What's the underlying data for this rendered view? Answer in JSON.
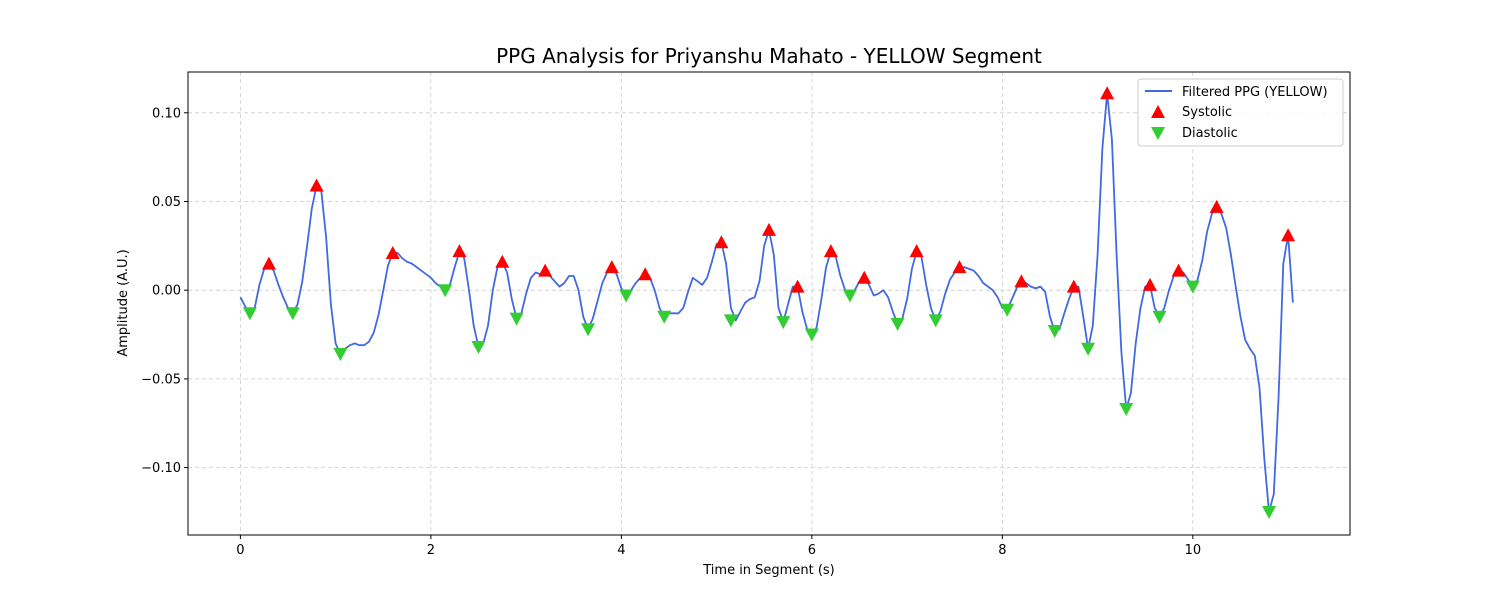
{
  "chart_data": {
    "type": "line",
    "title": "PPG Analysis for Priyanshu Mahato - YELLOW Segment",
    "xlabel": "Time in Segment (s)",
    "ylabel": "Amplitude (A.U.)",
    "xlim": [
      -0.55,
      11.65
    ],
    "ylim": [
      -0.138,
      0.123
    ],
    "xticks": [
      0,
      2,
      4,
      6,
      8,
      10
    ],
    "yticks": [
      -0.1,
      -0.05,
      0.0,
      0.05,
      0.1
    ],
    "ytick_labels": [
      "−0.10",
      "−0.05",
      "0.00",
      "0.05",
      "0.10"
    ],
    "grid": true,
    "legend_position": "top-right",
    "colors": {
      "line": "#4169e1",
      "systolic": "#ff0000",
      "diastolic": "#32cd32"
    },
    "series": [
      {
        "name": "Filtered PPG (YELLOW)",
        "kind": "line",
        "points": [
          [
            0.0,
            -0.004
          ],
          [
            0.05,
            -0.009
          ],
          [
            0.1,
            -0.013
          ],
          [
            0.15,
            -0.01
          ],
          [
            0.2,
            0.003
          ],
          [
            0.25,
            0.012
          ],
          [
            0.3,
            0.015
          ],
          [
            0.35,
            0.011
          ],
          [
            0.4,
            0.003
          ],
          [
            0.45,
            -0.004
          ],
          [
            0.5,
            -0.01
          ],
          [
            0.55,
            -0.013
          ],
          [
            0.6,
            -0.008
          ],
          [
            0.65,
            0.005
          ],
          [
            0.7,
            0.025
          ],
          [
            0.75,
            0.046
          ],
          [
            0.8,
            0.059
          ],
          [
            0.85,
            0.056
          ],
          [
            0.9,
            0.03
          ],
          [
            0.95,
            -0.008
          ],
          [
            1.0,
            -0.03
          ],
          [
            1.05,
            -0.036
          ],
          [
            1.1,
            -0.033
          ],
          [
            1.15,
            -0.031
          ],
          [
            1.2,
            -0.03
          ],
          [
            1.25,
            -0.031
          ],
          [
            1.3,
            -0.031
          ],
          [
            1.35,
            -0.029
          ],
          [
            1.4,
            -0.024
          ],
          [
            1.45,
            -0.014
          ],
          [
            1.5,
            0.0
          ],
          [
            1.55,
            0.014
          ],
          [
            1.6,
            0.021
          ],
          [
            1.65,
            0.021
          ],
          [
            1.7,
            0.018
          ],
          [
            1.75,
            0.016
          ],
          [
            1.8,
            0.015
          ],
          [
            1.85,
            0.013
          ],
          [
            1.9,
            0.011
          ],
          [
            1.95,
            0.009
          ],
          [
            2.0,
            0.007
          ],
          [
            2.05,
            0.004
          ],
          [
            2.1,
            0.002
          ],
          [
            2.15,
            0.0
          ],
          [
            2.2,
            0.003
          ],
          [
            2.25,
            0.013
          ],
          [
            2.3,
            0.022
          ],
          [
            2.35,
            0.018
          ],
          [
            2.4,
            0.0
          ],
          [
            2.45,
            -0.02
          ],
          [
            2.5,
            -0.032
          ],
          [
            2.55,
            -0.03
          ],
          [
            2.6,
            -0.02
          ],
          [
            2.65,
            0.0
          ],
          [
            2.7,
            0.013
          ],
          [
            2.75,
            0.016
          ],
          [
            2.8,
            0.01
          ],
          [
            2.85,
            -0.005
          ],
          [
            2.9,
            -0.016
          ],
          [
            2.95,
            -0.013
          ],
          [
            3.0,
            -0.002
          ],
          [
            3.05,
            0.007
          ],
          [
            3.1,
            0.01
          ],
          [
            3.15,
            0.009
          ],
          [
            3.2,
            0.011
          ],
          [
            3.25,
            0.008
          ],
          [
            3.3,
            0.005
          ],
          [
            3.35,
            0.002
          ],
          [
            3.4,
            0.004
          ],
          [
            3.45,
            0.008
          ],
          [
            3.5,
            0.008
          ],
          [
            3.55,
            0.0
          ],
          [
            3.6,
            -0.015
          ],
          [
            3.65,
            -0.022
          ],
          [
            3.7,
            -0.016
          ],
          [
            3.75,
            -0.006
          ],
          [
            3.8,
            0.004
          ],
          [
            3.85,
            0.01
          ],
          [
            3.9,
            0.013
          ],
          [
            3.95,
            0.009
          ],
          [
            4.0,
            0.001
          ],
          [
            4.05,
            -0.003
          ],
          [
            4.1,
            0.0
          ],
          [
            4.15,
            0.004
          ],
          [
            4.2,
            0.007
          ],
          [
            4.25,
            0.009
          ],
          [
            4.3,
            0.007
          ],
          [
            4.35,
            0.0
          ],
          [
            4.4,
            -0.01
          ],
          [
            4.45,
            -0.015
          ],
          [
            4.5,
            -0.013
          ],
          [
            4.55,
            -0.013
          ],
          [
            4.6,
            -0.013
          ],
          [
            4.65,
            -0.01
          ],
          [
            4.7,
            -0.001
          ],
          [
            4.75,
            0.007
          ],
          [
            4.8,
            0.005
          ],
          [
            4.85,
            0.003
          ],
          [
            4.9,
            0.007
          ],
          [
            4.95,
            0.016
          ],
          [
            5.0,
            0.026
          ],
          [
            5.05,
            0.027
          ],
          [
            5.1,
            0.015
          ],
          [
            5.15,
            -0.01
          ],
          [
            5.2,
            -0.017
          ],
          [
            5.25,
            -0.012
          ],
          [
            5.3,
            -0.007
          ],
          [
            5.35,
            -0.005
          ],
          [
            5.4,
            -0.004
          ],
          [
            5.45,
            0.005
          ],
          [
            5.5,
            0.025
          ],
          [
            5.55,
            0.034
          ],
          [
            5.6,
            0.02
          ],
          [
            5.65,
            -0.01
          ],
          [
            5.7,
            -0.018
          ],
          [
            5.75,
            -0.008
          ],
          [
            5.8,
            0.002
          ],
          [
            5.85,
            0.002
          ],
          [
            5.9,
            -0.012
          ],
          [
            5.95,
            -0.022
          ],
          [
            6.0,
            -0.025
          ],
          [
            6.05,
            -0.021
          ],
          [
            6.1,
            -0.005
          ],
          [
            6.15,
            0.013
          ],
          [
            6.2,
            0.022
          ],
          [
            6.25,
            0.019
          ],
          [
            6.3,
            0.008
          ],
          [
            6.35,
            0.0
          ],
          [
            6.4,
            -0.003
          ],
          [
            6.45,
            0.0
          ],
          [
            6.5,
            0.005
          ],
          [
            6.55,
            0.007
          ],
          [
            6.6,
            0.003
          ],
          [
            6.65,
            -0.003
          ],
          [
            6.7,
            -0.002
          ],
          [
            6.75,
            0.0
          ],
          [
            6.8,
            -0.004
          ],
          [
            6.85,
            -0.012
          ],
          [
            6.9,
            -0.019
          ],
          [
            6.95,
            -0.016
          ],
          [
            7.0,
            -0.005
          ],
          [
            7.05,
            0.012
          ],
          [
            7.1,
            0.022
          ],
          [
            7.15,
            0.019
          ],
          [
            7.2,
            0.003
          ],
          [
            7.25,
            -0.01
          ],
          [
            7.3,
            -0.017
          ],
          [
            7.35,
            -0.012
          ],
          [
            7.4,
            -0.002
          ],
          [
            7.45,
            0.006
          ],
          [
            7.5,
            0.01
          ],
          [
            7.55,
            0.012
          ],
          [
            7.6,
            0.013
          ],
          [
            7.65,
            0.012
          ],
          [
            7.7,
            0.011
          ],
          [
            7.75,
            0.008
          ],
          [
            7.8,
            0.004
          ],
          [
            7.85,
            0.002
          ],
          [
            7.9,
            0.0
          ],
          [
            7.95,
            -0.004
          ],
          [
            8.0,
            -0.01
          ],
          [
            8.05,
            -0.011
          ],
          [
            8.1,
            -0.005
          ],
          [
            8.15,
            0.001
          ],
          [
            8.2,
            0.005
          ],
          [
            8.25,
            0.004
          ],
          [
            8.3,
            0.002
          ],
          [
            8.35,
            0.001
          ],
          [
            8.4,
            0.002
          ],
          [
            8.45,
            -0.001
          ],
          [
            8.5,
            -0.015
          ],
          [
            8.55,
            -0.023
          ],
          [
            8.6,
            -0.022
          ],
          [
            8.65,
            -0.013
          ],
          [
            8.7,
            -0.005
          ],
          [
            8.75,
            0.002
          ],
          [
            8.8,
            0.002
          ],
          [
            8.85,
            -0.015
          ],
          [
            8.9,
            -0.033
          ],
          [
            8.95,
            -0.02
          ],
          [
            9.0,
            0.02
          ],
          [
            9.05,
            0.08
          ],
          [
            9.1,
            0.111
          ],
          [
            9.15,
            0.085
          ],
          [
            9.2,
            0.02
          ],
          [
            9.25,
            -0.035
          ],
          [
            9.3,
            -0.067
          ],
          [
            9.35,
            -0.058
          ],
          [
            9.4,
            -0.03
          ],
          [
            9.45,
            -0.01
          ],
          [
            9.5,
            0.002
          ],
          [
            9.55,
            0.003
          ],
          [
            9.6,
            -0.01
          ],
          [
            9.65,
            -0.015
          ],
          [
            9.7,
            -0.01
          ],
          [
            9.75,
            0.0
          ],
          [
            9.8,
            0.008
          ],
          [
            9.85,
            0.011
          ],
          [
            9.9,
            0.01
          ],
          [
            9.95,
            0.006
          ],
          [
            10.0,
            0.002
          ],
          [
            10.05,
            0.006
          ],
          [
            10.1,
            0.017
          ],
          [
            10.15,
            0.033
          ],
          [
            10.2,
            0.043
          ],
          [
            10.25,
            0.047
          ],
          [
            10.3,
            0.043
          ],
          [
            10.35,
            0.035
          ],
          [
            10.4,
            0.02
          ],
          [
            10.45,
            0.002
          ],
          [
            10.5,
            -0.015
          ],
          [
            10.55,
            -0.028
          ],
          [
            10.6,
            -0.033
          ],
          [
            10.65,
            -0.037
          ],
          [
            10.7,
            -0.055
          ],
          [
            10.75,
            -0.095
          ],
          [
            10.8,
            -0.125
          ],
          [
            10.85,
            -0.115
          ],
          [
            10.9,
            -0.06
          ],
          [
            10.95,
            0.015
          ],
          [
            11.0,
            0.031
          ],
          [
            11.05,
            -0.007
          ]
        ]
      },
      {
        "name": "Systolic",
        "kind": "marker",
        "marker": "triangle-up",
        "points": [
          [
            0.3,
            0.015
          ],
          [
            0.8,
            0.059
          ],
          [
            1.6,
            0.021
          ],
          [
            2.3,
            0.022
          ],
          [
            2.75,
            0.016
          ],
          [
            3.2,
            0.011
          ],
          [
            3.9,
            0.013
          ],
          [
            4.25,
            0.009
          ],
          [
            5.05,
            0.027
          ],
          [
            5.55,
            0.034
          ],
          [
            5.85,
            0.002
          ],
          [
            6.2,
            0.022
          ],
          [
            6.55,
            0.007
          ],
          [
            7.1,
            0.022
          ],
          [
            7.55,
            0.013
          ],
          [
            8.2,
            0.005
          ],
          [
            8.75,
            0.002
          ],
          [
            9.1,
            0.111
          ],
          [
            9.55,
            0.003
          ],
          [
            9.85,
            0.011
          ],
          [
            10.25,
            0.047
          ],
          [
            11.0,
            0.031
          ]
        ]
      },
      {
        "name": "Diastolic",
        "kind": "marker",
        "marker": "triangle-down",
        "points": [
          [
            0.1,
            -0.013
          ],
          [
            0.55,
            -0.013
          ],
          [
            1.05,
            -0.036
          ],
          [
            2.15,
            0.0
          ],
          [
            2.5,
            -0.032
          ],
          [
            2.9,
            -0.016
          ],
          [
            3.65,
            -0.022
          ],
          [
            4.05,
            -0.003
          ],
          [
            4.45,
            -0.015
          ],
          [
            5.15,
            -0.017
          ],
          [
            5.7,
            -0.018
          ],
          [
            6.0,
            -0.025
          ],
          [
            6.4,
            -0.003
          ],
          [
            6.9,
            -0.019
          ],
          [
            7.3,
            -0.017
          ],
          [
            8.05,
            -0.011
          ],
          [
            8.55,
            -0.023
          ],
          [
            8.9,
            -0.033
          ],
          [
            9.3,
            -0.067
          ],
          [
            9.65,
            -0.015
          ],
          [
            10.0,
            0.002
          ],
          [
            10.8,
            -0.125
          ]
        ]
      }
    ]
  }
}
